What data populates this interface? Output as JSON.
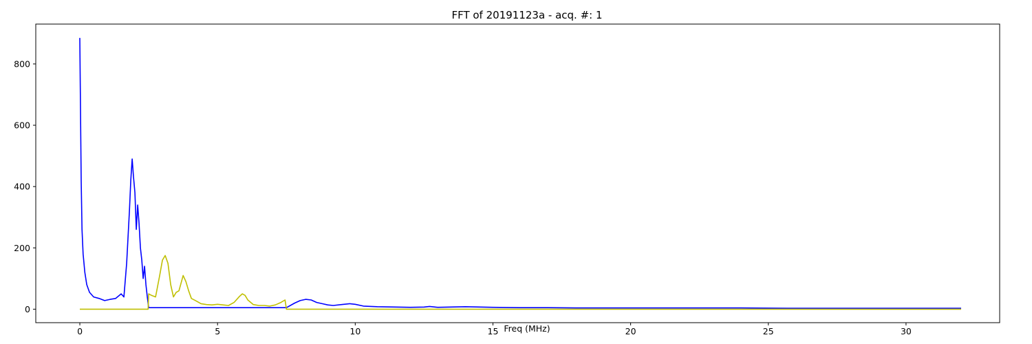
{
  "chart_data": {
    "type": "line",
    "title": "FFT of 20191123a - acq. #: 1",
    "xlabel": "Freq (MHz)",
    "ylabel": "",
    "xlim": [
      -1.6,
      33.4
    ],
    "ylim": [
      -44,
      930
    ],
    "xticks": [
      0,
      5,
      10,
      15,
      20,
      25,
      30
    ],
    "xtick_labels": [
      "0",
      "5",
      "10",
      "15",
      "20",
      "25",
      "30"
    ],
    "yticks": [
      0,
      200,
      400,
      600,
      800
    ],
    "ytick_labels": [
      "0",
      "200",
      "400",
      "600",
      "800"
    ],
    "grid": false,
    "legend": "none",
    "series": [
      {
        "color": "#0000ff",
        "x": [
          0.0,
          0.02,
          0.05,
          0.08,
          0.12,
          0.18,
          0.25,
          0.35,
          0.5,
          0.7,
          0.9,
          1.1,
          1.3,
          1.5,
          1.6,
          1.7,
          1.8,
          1.85,
          1.9,
          1.95,
          2.0,
          2.05,
          2.1,
          2.15,
          2.2,
          2.25,
          2.3,
          2.35,
          2.4,
          2.45,
          2.5,
          7.5,
          7.8,
          8.0,
          8.2,
          8.4,
          8.6,
          8.8,
          9.0,
          9.2,
          9.5,
          9.8,
          10.0,
          10.3,
          10.8,
          11.5,
          12.0,
          12.5,
          12.7,
          13.0,
          14.0,
          15.0,
          16.0,
          17.0,
          18.0,
          19.0,
          20.0,
          22.0,
          24.0,
          26.0,
          28.0,
          30.0,
          32.0
        ],
        "y": [
          885,
          700,
          420,
          260,
          180,
          120,
          80,
          55,
          40,
          35,
          28,
          32,
          35,
          50,
          40,
          150,
          320,
          420,
          490,
          430,
          380,
          260,
          340,
          280,
          200,
          160,
          100,
          140,
          80,
          40,
          5,
          5,
          20,
          28,
          32,
          30,
          22,
          18,
          14,
          12,
          15,
          18,
          16,
          10,
          8,
          7,
          6,
          7,
          9,
          6,
          8,
          6,
          5,
          5,
          4,
          4,
          4,
          4,
          4,
          3,
          3,
          3,
          3
        ]
      },
      {
        "color": "#bfbf00",
        "x": [
          0.0,
          2.48,
          2.5,
          2.6,
          2.75,
          2.9,
          3.0,
          3.1,
          3.2,
          3.3,
          3.4,
          3.5,
          3.6,
          3.75,
          3.85,
          3.95,
          4.05,
          4.2,
          4.4,
          4.6,
          4.8,
          5.0,
          5.2,
          5.4,
          5.6,
          5.8,
          5.9,
          6.0,
          6.1,
          6.3,
          6.5,
          6.7,
          6.9,
          7.1,
          7.3,
          7.45,
          7.5,
          32.0
        ],
        "y": [
          0,
          0,
          50,
          45,
          40,
          110,
          160,
          175,
          150,
          80,
          40,
          55,
          60,
          110,
          90,
          60,
          35,
          28,
          18,
          15,
          14,
          16,
          14,
          12,
          22,
          42,
          50,
          45,
          30,
          15,
          12,
          12,
          10,
          14,
          22,
          30,
          0,
          0
        ]
      }
    ]
  }
}
